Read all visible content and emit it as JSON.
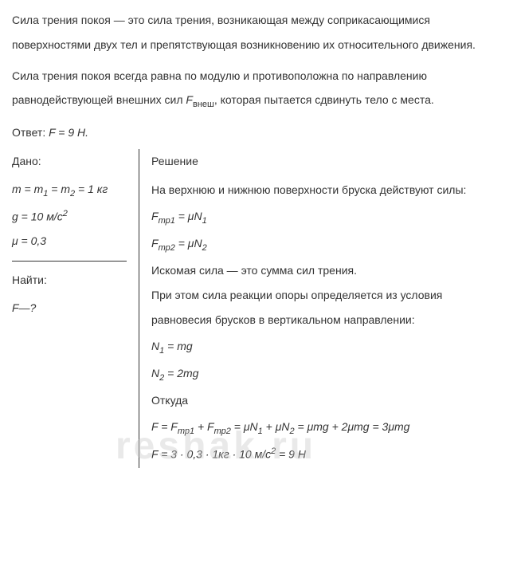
{
  "intro": {
    "p1": "Сила трения покоя — это сила трения, возникающая между соприкасающимися поверхностями двух тел и препятствующая возникновению их относительного движения.",
    "p2_part1": "Сила трения покоя всегда равна по модулю и противоположна по направлению равнодействующей внешних сил ",
    "p2_var": "F",
    "p2_sub": "внеш",
    "p2_part2": ", которая пытается сдвинуть тело с места."
  },
  "answer": {
    "label": "Ответ: ",
    "formula": "F = 9 Н."
  },
  "given": {
    "label": "Дано:",
    "line1_a": "m = m",
    "line1_b": "1",
    "line1_c": " = m",
    "line1_d": "2",
    "line1_e": " = 1 кг",
    "line2_a": "g = 10 м/с",
    "line2_b": "2",
    "line3": "μ = 0,3"
  },
  "find": {
    "label": "Найти:",
    "line1": "F—?"
  },
  "solution": {
    "label": "Решение",
    "text1": "На верхнюю и нижнюю поверхности бруска действуют силы:",
    "f1_a": "F",
    "f1_b": "тр1",
    "f1_c": " = μN",
    "f1_d": "1",
    "f2_a": "F",
    "f2_b": "тр2",
    "f2_c": " = μN",
    "f2_d": "2",
    "text2": "Искомая сила — это сумма сил трения.",
    "text3": "При этом сила реакции опоры определяется из условия равновесия брусков в вертикальном направлении:",
    "n1_a": "N",
    "n1_b": "1",
    "n1_c": " = mg",
    "n2_a": "N",
    "n2_b": "2",
    "n2_c": " = 2mg",
    "text4": "Откуда",
    "ff_a": "F = F",
    "ff_b": "тр1",
    "ff_c": " + F",
    "ff_d": "тр2",
    "ff_e": " = μN",
    "ff_f": "1",
    "ff_g": " + μN",
    "ff_h": "2",
    "ff_i": " = μmg + 2μmg = 3μmg",
    "fr_a": "F = 3 · 0,3 · 1кг · 10 м/с",
    "fr_b": "2",
    "fr_c": " = 9  Н"
  },
  "watermark": "reshak.ru"
}
